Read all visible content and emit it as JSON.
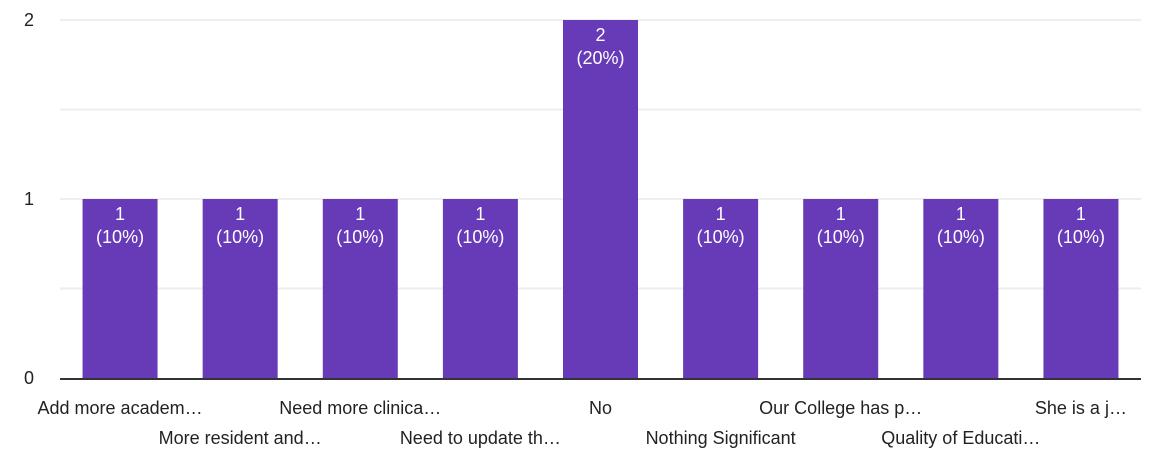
{
  "chart_data": {
    "type": "bar",
    "categories": [
      "Add more academ…",
      "More resident and…",
      "Need more clinica…",
      "Need to update th…",
      "No",
      "Nothing Significant",
      "Our College has p…",
      "Quality of Educati…",
      "She is a j…"
    ],
    "values": [
      1,
      1,
      1,
      1,
      2,
      1,
      1,
      1,
      1
    ],
    "data_labels": [
      [
        "1",
        "(10%)"
      ],
      [
        "1",
        "(10%)"
      ],
      [
        "1",
        "(10%)"
      ],
      [
        "1",
        "(10%)"
      ],
      [
        "2",
        "(20%)"
      ],
      [
        "1",
        "(10%)"
      ],
      [
        "1",
        "(10%)"
      ],
      [
        "1",
        "(10%)"
      ],
      [
        "1",
        "(10%)"
      ]
    ],
    "yticks": [
      0,
      1,
      2
    ],
    "ylim": [
      0,
      2
    ],
    "grid": true,
    "legend": "none",
    "bar_color": "#673ab7",
    "grid_color": "#eeeeee",
    "axis_color": "#333333"
  }
}
